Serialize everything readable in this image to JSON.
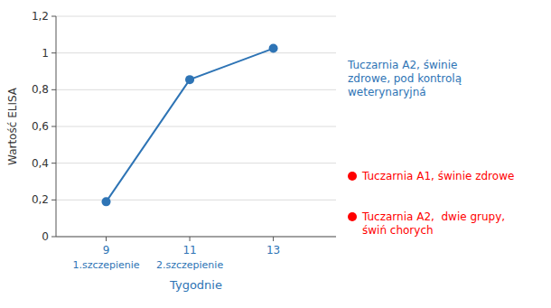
{
  "chart_data": {
    "type": "line",
    "x": [
      9,
      11,
      13
    ],
    "values": [
      0.19,
      0.855,
      1.025
    ],
    "color": "#2E74B5",
    "marker": "circle",
    "xlabel": "Tygodnie",
    "ylabel": "Wartość ELISA",
    "xlim": [
      7.8,
      14.5
    ],
    "xticks": [
      9,
      11,
      13
    ],
    "ylim": [
      0,
      1.2
    ],
    "yticks": [
      0,
      {
        "value": 0.2,
        "label": "0,2"
      },
      {
        "value": 0.4,
        "label": "0,4"
      },
      {
        "value": 0.6,
        "label": "0,6"
      },
      {
        "value": 0.8,
        "label": "0,8"
      },
      1,
      {
        "value": 1.2,
        "label": "1,2"
      }
    ],
    "grid": true,
    "annotations": [
      {
        "text": "1.szczepienie",
        "x": 9
      },
      {
        "text": "2.szczepienie",
        "x": 11
      },
      {
        "text": "Tuczarnia A2, świnie\nzdrowe, pod kontrolą\nweterynaryjná",
        "color": "#2E74B5"
      },
      {
        "text": "Tuczarnia A1, świnie zdrowe",
        "color": "red",
        "marker": "circle"
      },
      {
        "text": "Tuczarnia A2,  dwie grupy,\nświń chorych",
        "color": "red",
        "marker": "circle"
      }
    ]
  }
}
